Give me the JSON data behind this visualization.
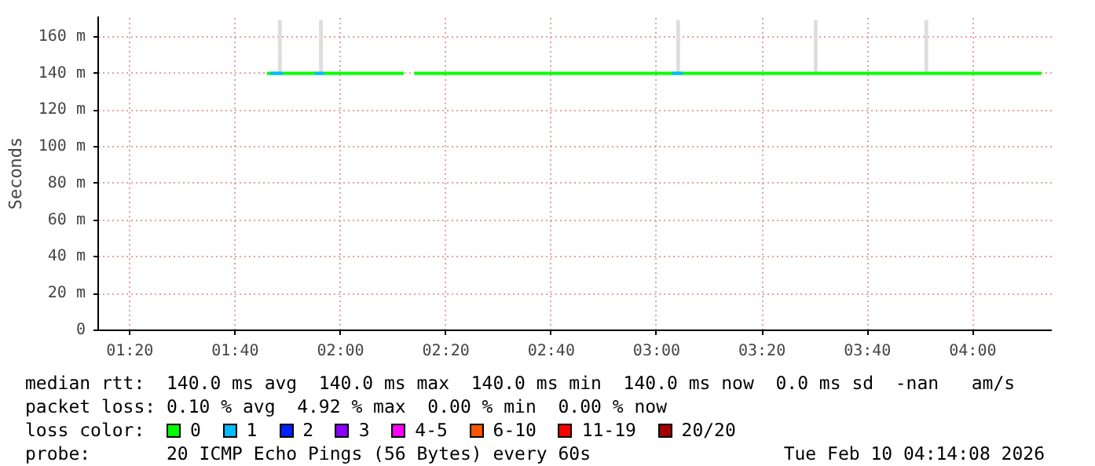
{
  "chart_data": {
    "type": "line",
    "ylabel": "Seconds",
    "legend_title": "loss color:",
    "xlim": [
      1.2333,
      4.25
    ],
    "ylim": [
      0,
      171
    ],
    "xticks": [
      {
        "value": 1.3333,
        "label": "01:20"
      },
      {
        "value": 1.6667,
        "label": "01:40"
      },
      {
        "value": 2.0,
        "label": "02:00"
      },
      {
        "value": 2.3333,
        "label": "02:20"
      },
      {
        "value": 2.6667,
        "label": "02:40"
      },
      {
        "value": 3.0,
        "label": "03:00"
      },
      {
        "value": 3.3333,
        "label": "03:20"
      },
      {
        "value": 3.6667,
        "label": "03:40"
      },
      {
        "value": 4.0,
        "label": "04:00"
      }
    ],
    "yticks": [
      0,
      {
        "value": 20,
        "label": "20 m"
      },
      {
        "value": 40,
        "label": "40 m"
      },
      {
        "value": 60,
        "label": "60 m"
      },
      {
        "value": 80,
        "label": "80 m"
      },
      {
        "value": 100,
        "label": "100 m"
      },
      {
        "value": 120,
        "label": "120 m"
      },
      {
        "value": 140,
        "label": "140 m"
      },
      {
        "value": 160,
        "label": "160 m"
      }
    ],
    "grid": true,
    "legend": "bottom",
    "line_style": "solid",
    "series": [
      {
        "type": "bar",
        "color": "#dddddd",
        "x": [
          1.808,
          1.938,
          3.068,
          3.503,
          3.853
        ],
        "base": [
          140,
          140,
          140,
          140,
          140
        ],
        "values": [
          29,
          29,
          29,
          29,
          29
        ]
      },
      {
        "name": "0",
        "color": "#00ff00",
        "x": [
          1.767,
          2.2,
          2.21,
          2.233,
          4.217
        ],
        "values": [
          140,
          140,
          null,
          140,
          140
        ]
      },
      {
        "name": "1",
        "color": "#00bbff",
        "x": [
          1.778,
          1.818,
          1.83,
          1.918,
          1.948,
          1.96,
          3.048,
          3.083
        ],
        "values": [
          140,
          140,
          null,
          140,
          140,
          null,
          140,
          140
        ]
      },
      {
        "name": "2",
        "color": "#0022ff"
      },
      {
        "name": "3",
        "color": "#8a00ff"
      },
      {
        "name": "4-5",
        "color": "#ff00ff"
      },
      {
        "name": "6-10",
        "color": "#ff5500"
      },
      {
        "name": "11-19",
        "color": "#ff0000"
      },
      {
        "name": "20/20",
        "color": "#a10000"
      }
    ],
    "annotations": [
      "median rtt:  140.0 ms avg  140.0 ms max  140.0 ms min  140.0 ms now  0.0 ms sd  -nan   am/s",
      "packet loss: 0.10 % avg  4.92 % max  0.00 % min  0.00 % now",
      "probe:       20 ICMP Echo Pings (56 Bytes) every 60s",
      "Tue Feb 10 04:14:08 2026"
    ]
  }
}
